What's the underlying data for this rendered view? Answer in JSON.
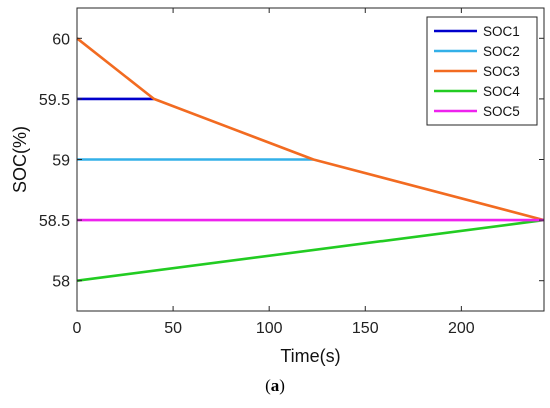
{
  "caption": {
    "open": "(",
    "letter": "a",
    "close": ")"
  },
  "chart_data": {
    "type": "line",
    "title": "",
    "xlabel": "Time(s)",
    "ylabel": "SOC(%)",
    "xlim": [
      0,
      243
    ],
    "ylim": [
      57.75,
      60.25
    ],
    "xticks": [
      0,
      50,
      100,
      150,
      200
    ],
    "yticks": [
      58,
      58.5,
      59,
      59.5,
      60
    ],
    "grid": false,
    "legend_position": "top-right",
    "series": [
      {
        "name": "SOC1",
        "color": "#0000cc",
        "x": [
          0,
          40
        ],
        "y": [
          59.5,
          59.5
        ]
      },
      {
        "name": "SOC2",
        "color": "#33b0e8",
        "x": [
          0,
          123
        ],
        "y": [
          59.0,
          59.0
        ]
      },
      {
        "name": "SOC3",
        "color": "#f26b21",
        "x": [
          0,
          40,
          123,
          243
        ],
        "y": [
          60.0,
          59.5,
          59.0,
          58.5
        ]
      },
      {
        "name": "SOC4",
        "color": "#22cc22",
        "x": [
          0,
          243
        ],
        "y": [
          58.0,
          58.5
        ]
      },
      {
        "name": "SOC5",
        "color": "#ee22ee",
        "x": [
          0,
          243
        ],
        "y": [
          58.5,
          58.5
        ]
      }
    ]
  }
}
